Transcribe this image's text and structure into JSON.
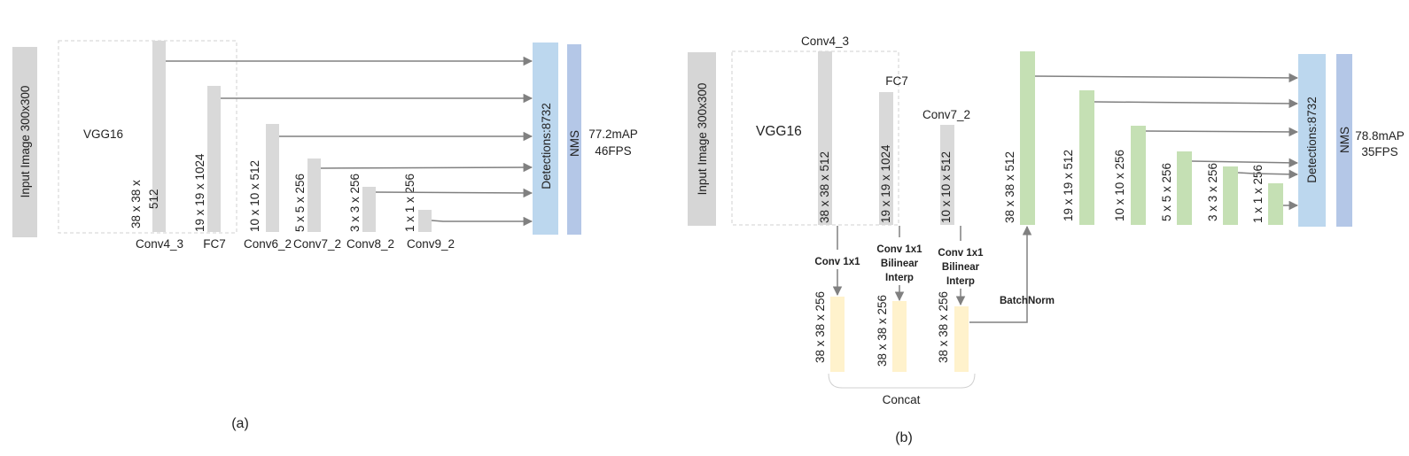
{
  "colors": {
    "gray_block": "#d9d9d9",
    "gray_input": "#d6d6d6",
    "detection_blue": "#bcd7ee",
    "nms_blue": "#b4c7e7",
    "green_block": "#c5e0b4",
    "yellow_block": "#fff2cc",
    "arrow": "#808080",
    "dashed_box": "#d0d0d0"
  },
  "panel_a": {
    "input_label": "Input Image 300x300",
    "backbone_label": "VGG16",
    "detections_label": "Detections:8732",
    "nms_label": "NMS",
    "result_map": "77.2mAP",
    "result_fps": "46FPS",
    "caption": "(a)",
    "layers": [
      {
        "name": "Conv4_3",
        "size_line1": "38 x 38 x",
        "size_line2": "512"
      },
      {
        "name": "FC7",
        "size": "19 x 19 x 1024"
      },
      {
        "name": "Conv6_2",
        "size": "10 x 10 x 512"
      },
      {
        "name": "Conv7_2",
        "size": "5 x 5 x 256"
      },
      {
        "name": "Conv8_2",
        "size": "3 x 3 x 256"
      },
      {
        "name": "Conv9_2",
        "size": "1 x 1 x 256"
      }
    ]
  },
  "panel_b": {
    "input_label": "Input Image 300x300",
    "backbone_label": "VGG16",
    "detections_label": "Detections:8732",
    "nms_label": "NMS",
    "result_map": "78.8mAP",
    "result_fps": "35FPS",
    "caption": "(b)",
    "backbone_layers": [
      {
        "name": "Conv4_3",
        "size": "38 x 38 x 512"
      },
      {
        "name": "FC7",
        "size": "19 x 19 x 1024"
      },
      {
        "name": "Conv7_2",
        "size": "10 x 10 x 512"
      }
    ],
    "ops": [
      {
        "line1": "Conv 1x1"
      },
      {
        "line1": "Conv 1x1",
        "line2": "Bilinear",
        "line3": "Interp"
      },
      {
        "line1": "Conv 1x1",
        "line2": "Bilinear",
        "line3": "Interp"
      }
    ],
    "fused_layers": [
      {
        "size": "38 x 38 x 256"
      },
      {
        "size": "38 x 38 x 256"
      },
      {
        "size": "38 x 38 x 256"
      }
    ],
    "concat_label": "Concat",
    "batchnorm_label": "BatchNorm",
    "pyramid_layers": [
      {
        "size": "38 x 38 x 512"
      },
      {
        "size": "19 x 19 x 512"
      },
      {
        "size": "10 x 10 x 256"
      },
      {
        "size": "5 x 5 x 256"
      },
      {
        "size": "3 x 3 x 256"
      },
      {
        "size": "1 x 1 x 256"
      }
    ]
  }
}
